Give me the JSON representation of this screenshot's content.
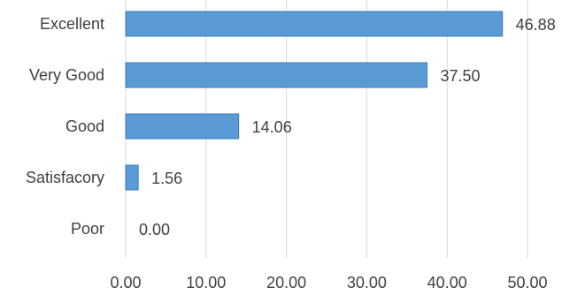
{
  "chart_data": {
    "type": "bar",
    "orientation": "horizontal",
    "categories": [
      "Excellent",
      "Very Good",
      "Good",
      "Satisfacory",
      "Poor"
    ],
    "values": [
      46.88,
      37.5,
      14.06,
      1.56,
      0.0
    ],
    "data_labels": [
      "46.88",
      "37.50",
      "14.06",
      "1.56",
      "0.00"
    ],
    "x_ticks": [
      "0.00",
      "10.00",
      "20.00",
      "30.00",
      "40.00",
      "50.00"
    ],
    "xlim": [
      0,
      50
    ],
    "title": "",
    "xlabel": "",
    "ylabel": "",
    "grid": true,
    "legend": "none",
    "colors": {
      "bar": "#5b9bd5",
      "bar_border": "#3a7cbf",
      "grid": "#d9d9d9",
      "text": "#404040"
    }
  }
}
